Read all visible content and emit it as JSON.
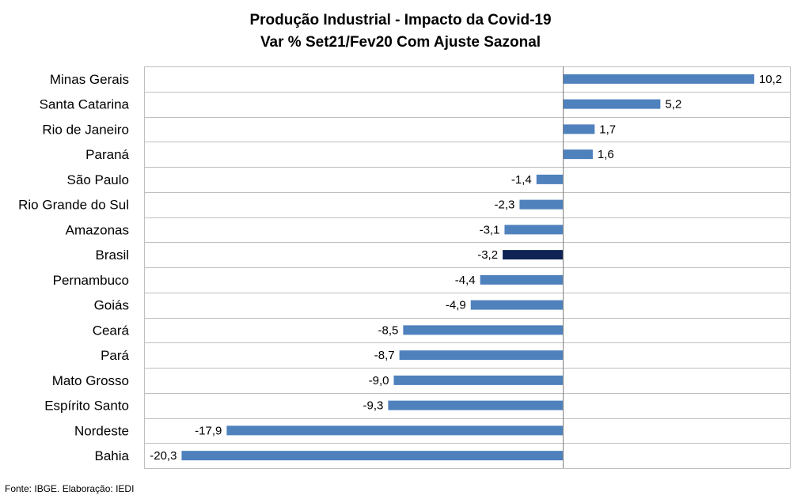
{
  "chart_data": {
    "type": "bar",
    "orientation": "horizontal",
    "title": "Produção Industrial - Impacto da Covid-19",
    "subtitle": "Var % Set21/Fev20  Com Ajuste Sazonal",
    "categories": [
      "Minas Gerais",
      "Santa Catarina",
      "Rio de Janeiro",
      "Paraná",
      "São Paulo",
      "Rio Grande do Sul",
      "Amazonas",
      "Brasil",
      "Pernambuco",
      "Goiás",
      "Ceará",
      "Pará",
      "Mato Grosso",
      "Espírito Santo",
      "Nordeste",
      "Bahia"
    ],
    "values": [
      10.2,
      5.2,
      1.7,
      1.6,
      -1.4,
      -2.3,
      -3.1,
      -3.2,
      -4.4,
      -4.9,
      -8.5,
      -8.7,
      -9.0,
      -9.3,
      -17.9,
      -20.3
    ],
    "value_labels": [
      "10,2",
      "5,2",
      "1,7",
      "1,6",
      "-1,4",
      "-2,3",
      "-3,1",
      "-3,2",
      "-4,4",
      "-4,9",
      "-8,5",
      "-8,7",
      "-9,0",
      "-9,3",
      "-17,9",
      "-20,3"
    ],
    "highlight_category": "Brasil",
    "xlim": [
      -22.3,
      12.1
    ],
    "grid": true,
    "legend": "none",
    "colors": {
      "bar": "#4f81bd",
      "highlight": "#0f2454",
      "grid": "#bfbfbf",
      "axis": "#7f7f7f"
    }
  },
  "footer": {
    "source": "Fonte: IBGE. Elaboração: IEDI"
  }
}
